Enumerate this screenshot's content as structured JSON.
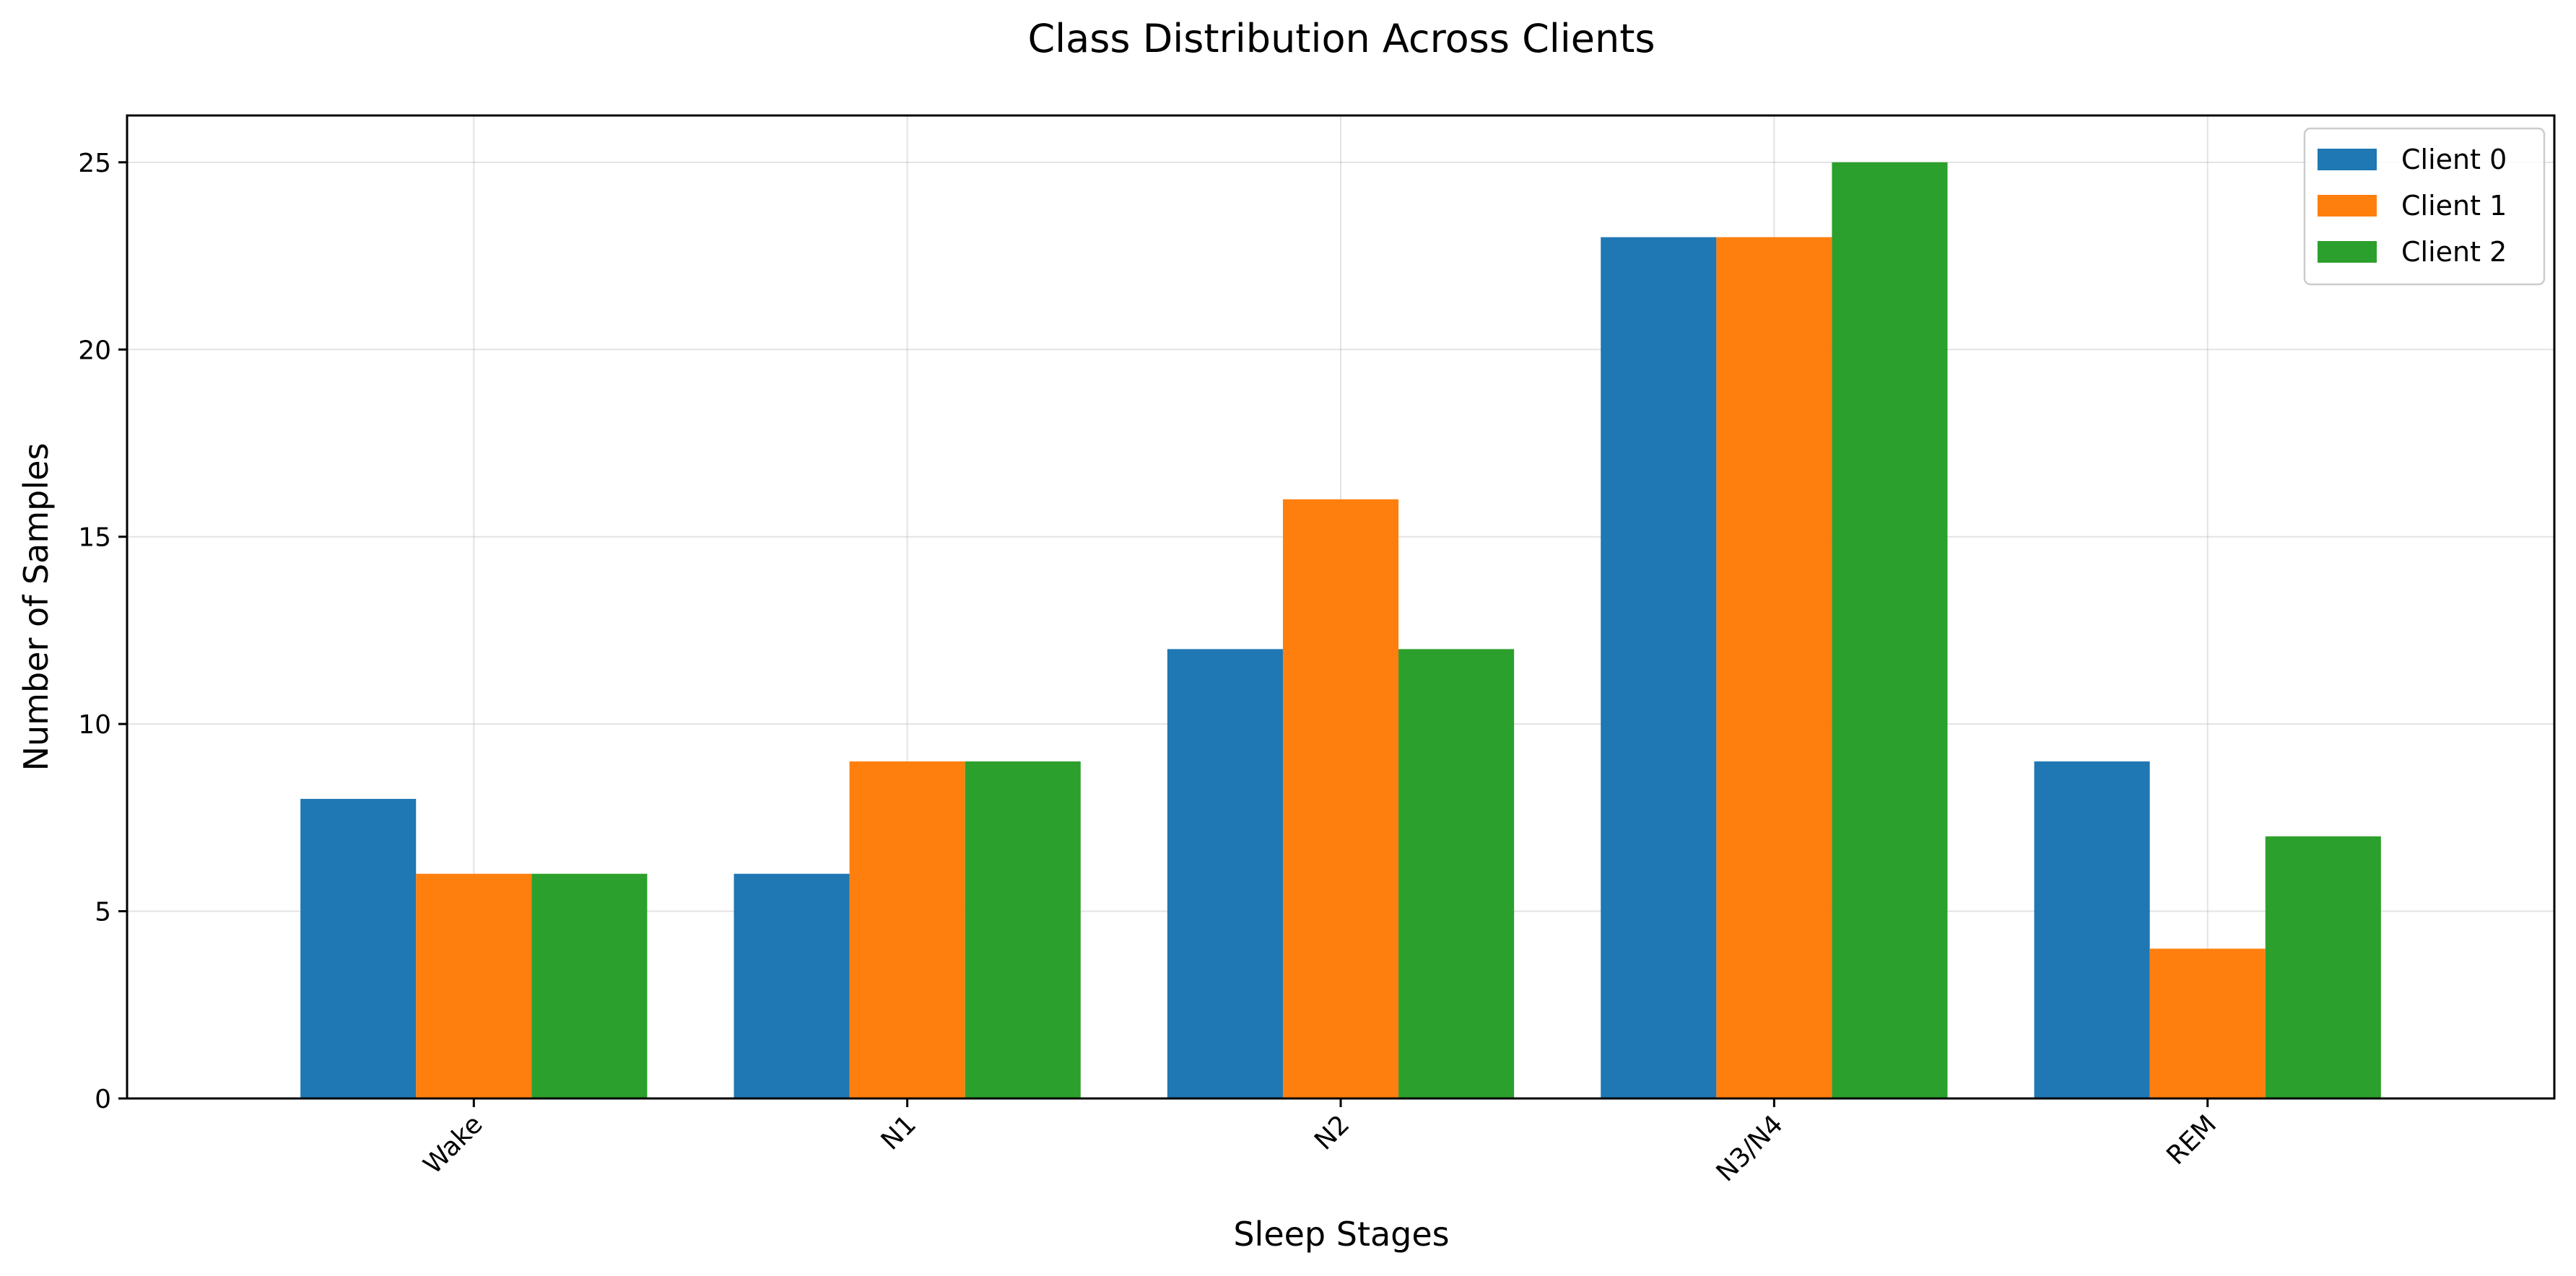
{
  "chart_data": {
    "type": "bar",
    "title": "Class Distribution Across Clients",
    "xlabel": "Sleep Stages",
    "ylabel": "Number of Samples",
    "categories": [
      "Wake",
      "N1",
      "N2",
      "N3/N4",
      "REM"
    ],
    "series": [
      {
        "name": "Client 0",
        "color": "#1f77b4",
        "values": [
          8,
          6,
          12,
          23,
          9
        ]
      },
      {
        "name": "Client 1",
        "color": "#ff7f0e",
        "values": [
          6,
          9,
          16,
          23,
          4
        ]
      },
      {
        "name": "Client 2",
        "color": "#2ca02c",
        "values": [
          6,
          9,
          12,
          25,
          7
        ]
      }
    ],
    "ylim": [
      0,
      26.25
    ],
    "yticks": [
      0,
      5,
      10,
      15,
      20,
      25
    ],
    "grid": true,
    "legend_position": "top-right",
    "xtick_rotation": -45
  }
}
